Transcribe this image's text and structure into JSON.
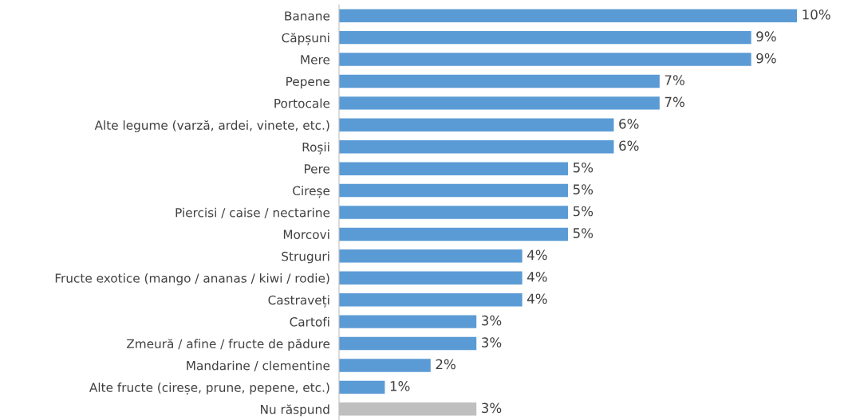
{
  "chart_data": {
    "type": "bar",
    "orientation": "horizontal",
    "categories": [
      "Banane",
      "Căpșuni",
      "Mere",
      "Pepene",
      "Portocale",
      "Alte legume (varză, ardei, vinete, etc.)",
      "Roșii",
      "Pere",
      "Cireșe",
      "Piercisi / caise / nectarine",
      "Morcovi",
      "Struguri",
      "Fructe exotice (mango / ananas / kiwi / rodie)",
      "Castraveți",
      "Cartofi",
      "Zmeură / afine / fructe de pădure",
      "Mandarine / clementine",
      "Alte fructe (cireșe, prune, pepene, etc.)",
      "Nu răspund"
    ],
    "values": [
      10,
      9,
      9,
      7,
      7,
      6,
      6,
      5,
      5,
      5,
      5,
      4,
      4,
      4,
      3,
      3,
      2,
      1,
      3
    ],
    "value_labels": [
      "10%",
      "9%",
      "9%",
      "7%",
      "7%",
      "6%",
      "6%",
      "5%",
      "5%",
      "5%",
      "5%",
      "4%",
      "4%",
      "4%",
      "3%",
      "3%",
      "2%",
      "1%",
      "3%"
    ],
    "colors": [
      "#5b9bd5",
      "#5b9bd5",
      "#5b9bd5",
      "#5b9bd5",
      "#5b9bd5",
      "#5b9bd5",
      "#5b9bd5",
      "#5b9bd5",
      "#5b9bd5",
      "#5b9bd5",
      "#5b9bd5",
      "#5b9bd5",
      "#5b9bd5",
      "#5b9bd5",
      "#5b9bd5",
      "#5b9bd5",
      "#5b9bd5",
      "#5b9bd5",
      "#bfbfbf"
    ],
    "grid": false,
    "legend": false
  }
}
